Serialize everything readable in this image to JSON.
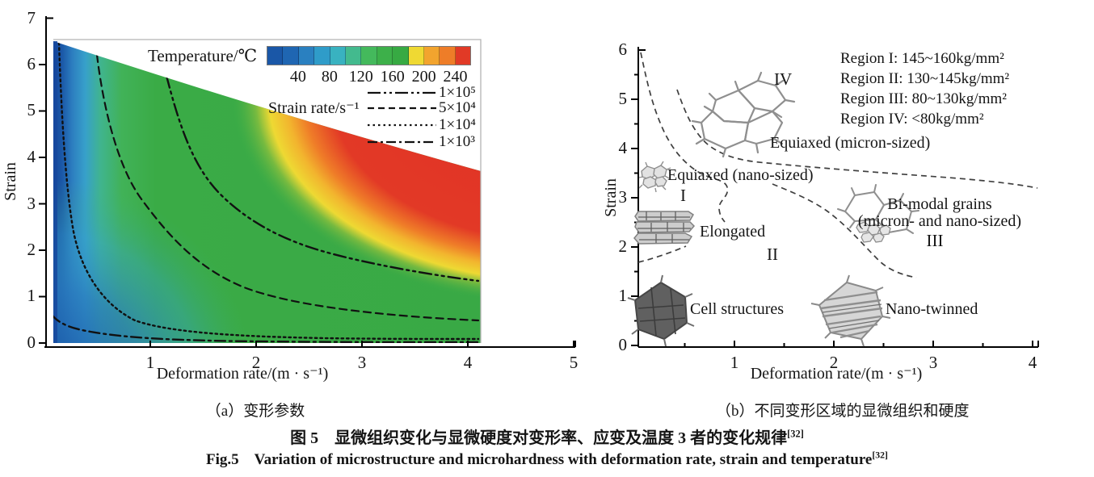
{
  "figure": {
    "caption_zh": "图 5　显微组织变化与显微硬度对变形率、应变及温度 3 者的变化规律",
    "caption_zh_ref": "[32]",
    "caption_en": "Fig.5　Variation of microstructure and microhardness with deformation rate, strain and temperature",
    "caption_en_ref": "[32]"
  },
  "panel_a": {
    "caption": "（a）变形参数",
    "xlabel": "Deformation rate/(m · s⁻¹)",
    "ylabel": "Strain",
    "x_ticks": [
      "1",
      "2",
      "3",
      "4",
      "5"
    ],
    "y_ticks": [
      "0",
      "1",
      "2",
      "3",
      "4",
      "5",
      "6",
      "7"
    ],
    "colorbar": {
      "title": "Temperature/℃",
      "tick_labels": [
        "40",
        "80",
        "120",
        "160",
        "200",
        "240"
      ],
      "colors": [
        "#1a57a7",
        "#1f66b2",
        "#2a80c0",
        "#2f9cc9",
        "#39b2c0",
        "#43ba8e",
        "#44b95c",
        "#3db04a",
        "#37aa43",
        "#efd933",
        "#f2a42e",
        "#ee7d28",
        "#e13a26"
      ]
    },
    "legend": {
      "title": "Strain rate/s⁻¹",
      "items": [
        {
          "label": "1×10⁵",
          "style": "dash-dot-dot"
        },
        {
          "label": "5×10⁴",
          "style": "dashed"
        },
        {
          "label": "1×10⁴",
          "style": "dotted"
        },
        {
          "label": "1×10³",
          "style": "dash-dot"
        }
      ]
    }
  },
  "panel_b": {
    "caption": "（b）不同变形区域的显微组织和硬度",
    "xlabel": "Deformation rate/(m · s⁻¹)",
    "ylabel": "Strain",
    "x_ticks": [
      "1",
      "2",
      "3",
      "4"
    ],
    "y_ticks": [
      "0",
      "1",
      "2",
      "3",
      "4",
      "5",
      "6"
    ],
    "hardness_legend": [
      "Region I: 145~160kg/mm²",
      "Region II: 130~145kg/mm²",
      "Region III: 80~130kg/mm²",
      "Region IV: <80kg/mm²"
    ],
    "regions": {
      "r1": "I",
      "r2": "II",
      "r3": "III",
      "r4": "IV"
    },
    "annotations": {
      "equiaxed_micron": "Equiaxed (micron-sized)",
      "equiaxed_nano": "Equiaxed (nano-sized)",
      "elongated": "Elongated",
      "bimodal_line1": "Bi-modal grains",
      "bimodal_line2": "(micron- and nano-sized)",
      "cell": "Cell structures",
      "twinned": "Nano-twinned"
    }
  },
  "chart_data": [
    {
      "type": "heatmap",
      "panel": "a",
      "title": "（a）变形参数",
      "xlabel": "Deformation rate/(m · s⁻¹)",
      "ylabel": "Strain",
      "xlim": [
        0,
        5
      ],
      "ylim": [
        0,
        7
      ],
      "colorbar_label": "Temperature/℃",
      "colorbar_ticks": [
        40,
        80,
        120,
        160,
        200,
        240
      ],
      "data_region": {
        "x_range": [
          0.07,
          4.12
        ],
        "strain_bottom": 0,
        "strain_top_at_x0": 6.5,
        "strain_top_at_xmax": 3.75
      },
      "field_description": "Temperature rises from ~30℃ (dark blue) near zero deformation rate, through cyan and green (~100-160℃) in the mid region, to a yellow-orange band (~180-220℃) and red (>240℃) at high deformation rate and high strain (upper right).",
      "contours": [
        {
          "label": "1×10⁵",
          "line_style": "dash-dot-dot",
          "points": [
            [
              1.15,
              5.8
            ],
            [
              1.6,
              4.3
            ],
            [
              2.1,
              3.1
            ],
            [
              2.7,
              2.3
            ],
            [
              3.4,
              1.7
            ],
            [
              4.1,
              1.35
            ]
          ]
        },
        {
          "label": "5×10⁴",
          "line_style": "dashed",
          "points": [
            [
              0.5,
              6.2
            ],
            [
              0.7,
              4.4
            ],
            [
              0.95,
              3.1
            ],
            [
              1.35,
              2.0
            ],
            [
              1.9,
              1.2
            ],
            [
              2.6,
              0.75
            ],
            [
              3.4,
              0.55
            ],
            [
              4.1,
              0.5
            ]
          ]
        },
        {
          "label": "1×10⁴",
          "line_style": "dotted",
          "points": [
            [
              0.14,
              6.45
            ],
            [
              0.2,
              3.9
            ],
            [
              0.28,
              2.55
            ],
            [
              0.5,
              1.15
            ],
            [
              0.85,
              0.5
            ],
            [
              1.6,
              0.22
            ],
            [
              2.6,
              0.12
            ],
            [
              4.1,
              0.1
            ]
          ]
        },
        {
          "label": "1×10³",
          "line_style": "dash-dot",
          "points": [
            [
              0.07,
              0.6
            ],
            [
              0.35,
              0.3
            ],
            [
              1.0,
              0.12
            ],
            [
              2.5,
              0.05
            ],
            [
              4.1,
              0.03
            ]
          ]
        }
      ]
    },
    {
      "type": "line",
      "panel": "b",
      "title": "（b）不同变形区域的显微组织和硬度",
      "xlabel": "Deformation rate/(m · s⁻¹)",
      "ylabel": "Strain",
      "xlim": [
        0,
        4
      ],
      "ylim": [
        0,
        6
      ],
      "region_hardness": {
        "I": "145~160kg/mm²",
        "II": "130~145kg/mm²",
        "III": "80~130kg/mm²",
        "IV": "<80kg/mm²"
      },
      "region_microstructure": {
        "I": "Equiaxed (nano-sized)",
        "II": "Elongated",
        "III": "Bi-modal grains (micron- and nano-sized)",
        "IV": "Equiaxed (micron-sized)",
        "lower_left": "Cell structures",
        "lower_right": "Nano-twinned"
      },
      "boundaries": [
        {
          "name": "region-I-upper-boundary",
          "style": "dashed",
          "points": [
            [
              0.06,
              5.95
            ],
            [
              0.2,
              4.9
            ],
            [
              0.35,
              4.3
            ],
            [
              0.55,
              3.65
            ],
            [
              0.93,
              3.2
            ],
            [
              0.86,
              2.85
            ],
            [
              0.9,
              2.5
            ]
          ]
        },
        {
          "name": "region-IV-lower-boundary",
          "style": "dashed",
          "points": [
            [
              0.42,
              5.2
            ],
            [
              0.6,
              4.4
            ],
            [
              0.85,
              3.95
            ],
            [
              1.3,
              3.72
            ],
            [
              2.0,
              3.6
            ],
            [
              3.0,
              3.45
            ],
            [
              4.05,
              3.2
            ]
          ]
        },
        {
          "name": "region-II-III-boundary",
          "style": "dashed",
          "points": [
            [
              1.38,
              3.3
            ],
            [
              1.85,
              2.9
            ],
            [
              2.2,
              2.4
            ],
            [
              2.6,
              1.75
            ],
            [
              2.82,
              1.4
            ]
          ]
        },
        {
          "name": "cell-structures-boundary",
          "style": "dashed",
          "points": [
            [
              0.03,
              1.62
            ],
            [
              0.3,
              1.8
            ],
            [
              0.5,
              2.0
            ]
          ]
        }
      ],
      "labels": [
        {
          "text": "I",
          "x": 0.5,
          "y": 3.0
        },
        {
          "text": "II",
          "x": 1.4,
          "y": 1.85
        },
        {
          "text": "III",
          "x": 2.95,
          "y": 2.15
        },
        {
          "text": "IV",
          "x": 1.55,
          "y": 5.35
        }
      ]
    }
  ]
}
